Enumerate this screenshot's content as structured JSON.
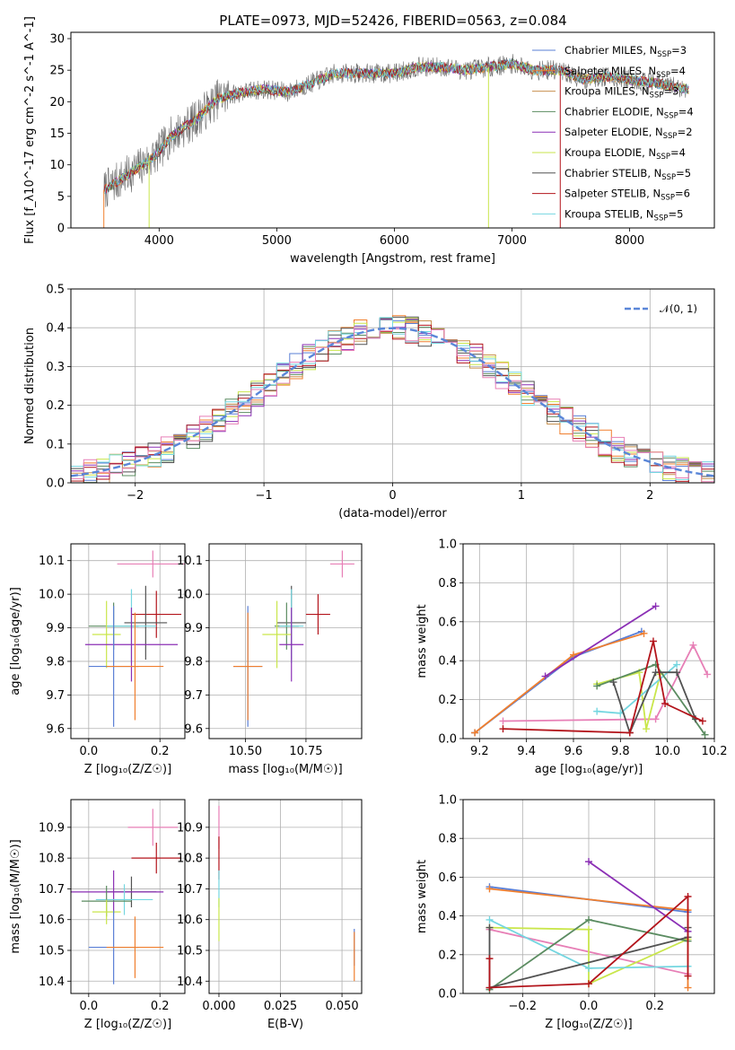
{
  "colors": {
    "chabrier_miles": "#5a7fd6",
    "salpeter_miles": "#f07f2e",
    "kroupa_miles": "#c8914f",
    "chabrier_elodie": "#5b8c61",
    "salpeter_elodie": "#8b2fb5",
    "kroupa_elodie": "#c9e64b",
    "chabrier_stelib": "#525252",
    "salpeter_stelib": "#b3141b",
    "kroupa_stelib": "#74d6e0",
    "pink": "#e77fb6",
    "normal": "#5a86d8"
  },
  "chart_data": [
    {
      "id": "spectrum",
      "type": "line",
      "title": "PLATE=0973, MJD=52426, FIBERID=0563, z=0.084",
      "xlabel": "wavelength [Angstrom, rest frame]",
      "ylabel": "Flux [f_λ10^-17 erg cm^-2 s^-1 A^-1]",
      "xlim": [
        3250,
        8720
      ],
      "ylim": [
        0,
        31
      ],
      "xticks": [
        "4000",
        "5000",
        "6000",
        "7000",
        "8000"
      ],
      "yticks": [
        "0",
        "5",
        "10",
        "15",
        "20",
        "25",
        "30"
      ],
      "legend": "top-right",
      "legend_entries": [
        {
          "label": "Chabrier MILES, N",
          "sub": "SSP",
          "suffix": "=3",
          "color_key": "chabrier_miles"
        },
        {
          "label": "Salpeter MILES, N",
          "sub": "SSP",
          "suffix": "=4",
          "color_key": "salpeter_miles"
        },
        {
          "label": "Kroupa MILES, N",
          "sub": "SSP",
          "suffix": "=3",
          "color_key": "kroupa_miles"
        },
        {
          "label": "Chabrier ELODIE, N",
          "sub": "SSP",
          "suffix": "=4",
          "color_key": "chabrier_elodie"
        },
        {
          "label": "Salpeter ELODIE, N",
          "sub": "SSP",
          "suffix": "=2",
          "color_key": "salpeter_elodie"
        },
        {
          "label": "Kroupa ELODIE, N",
          "sub": "SSP",
          "suffix": "=4",
          "color_key": "kroupa_elodie"
        },
        {
          "label": "Chabrier STELIB, N",
          "sub": "SSP",
          "suffix": "=5",
          "color_key": "chabrier_stelib"
        },
        {
          "label": "Salpeter STELIB, N",
          "sub": "SSP",
          "suffix": "=6",
          "color_key": "salpeter_stelib"
        },
        {
          "label": "Kroupa STELIB, N",
          "sub": "SSP",
          "suffix": "=5",
          "color_key": "kroupa_stelib"
        }
      ],
      "continuum": [
        [
          3530,
          6
        ],
        [
          3700,
          8
        ],
        [
          3900,
          10.5
        ],
        [
          4000,
          12
        ],
        [
          4100,
          14.5
        ],
        [
          4300,
          17
        ],
        [
          4500,
          20.5
        ],
        [
          4700,
          21.5
        ],
        [
          4900,
          22
        ],
        [
          5100,
          21.5
        ],
        [
          5300,
          23
        ],
        [
          5500,
          24.5
        ],
        [
          5800,
          24.5
        ],
        [
          6000,
          24.5
        ],
        [
          6200,
          25.5
        ],
        [
          6400,
          25.5
        ],
        [
          6600,
          25
        ],
        [
          6800,
          25.5
        ],
        [
          7000,
          26
        ],
        [
          7200,
          25
        ],
        [
          7400,
          25
        ],
        [
          7600,
          23.5
        ],
        [
          7800,
          24
        ],
        [
          8000,
          23.5
        ],
        [
          8200,
          23
        ],
        [
          8500,
          22
        ]
      ],
      "dropouts": [
        {
          "x": 3530,
          "bottom": 0,
          "color_key": "salpeter_miles"
        },
        {
          "x": 3915,
          "bottom": 0,
          "color_key": "kroupa_elodie"
        },
        {
          "x": 6800,
          "bottom": 0,
          "color_key": "kroupa_elodie"
        },
        {
          "x": 7410,
          "bottom": 0,
          "color_key": "salpeter_stelib"
        }
      ]
    },
    {
      "id": "residual_hist",
      "type": "line",
      "xlabel": "(data-model)/error",
      "ylabel": "Normed distribution",
      "xlim": [
        -2.5,
        2.5
      ],
      "ylim": [
        0,
        0.5
      ],
      "xticks": [
        "−2",
        "−1",
        "0",
        "1",
        "2"
      ],
      "yticks": [
        "0.0",
        "0.1",
        "0.2",
        "0.3",
        "0.4",
        "0.5"
      ],
      "legend": "top-right",
      "legend_label": "𝒩(0, 1)",
      "bin_width": 0.1,
      "peak_values": [
        0.47,
        0.46,
        0.45,
        0.44,
        0.43,
        0.42
      ]
    },
    {
      "id": "age_vs_Z",
      "type": "scatter",
      "xlabel": "Z [log₁₀(Z/Z☉)]",
      "ylabel": "age  [log₁₀(age/yr)]",
      "xlim": [
        -0.05,
        0.27
      ],
      "ylim": [
        9.57,
        10.15
      ],
      "xticks": [
        "0.0",
        "0.2"
      ],
      "yticks": [
        "9.6",
        "9.7",
        "9.8",
        "9.9",
        "10.0",
        "10.1"
      ],
      "points": [
        {
          "color_key": "pink",
          "x": 0.18,
          "xerr": 0.1,
          "y": 10.09,
          "yerr": 0.04
        },
        {
          "color_key": "salpeter_stelib",
          "x": 0.19,
          "xerr": 0.07,
          "y": 9.94,
          "yerr": 0.07
        },
        {
          "color_key": "chabrier_stelib",
          "x": 0.16,
          "xerr": 0.06,
          "y": 9.915,
          "yerr": 0.11
        },
        {
          "color_key": "chabrier_elodie",
          "x": 0.07,
          "xerr": 0.07,
          "y": 9.905,
          "yerr": 0.07
        },
        {
          "color_key": "kroupa_stelib",
          "x": 0.12,
          "xerr": 0.07,
          "y": 9.905,
          "yerr": 0.11
        },
        {
          "color_key": "kroupa_elodie",
          "x": 0.05,
          "xerr": 0.04,
          "y": 9.88,
          "yerr": 0.1
        },
        {
          "color_key": "salpeter_elodie",
          "x": 0.12,
          "xerr": 0.13,
          "y": 9.85,
          "yerr": 0.11
        },
        {
          "color_key": "chabrier_miles",
          "x": 0.07,
          "xerr": 0.07,
          "y": 9.785,
          "yerr": 0.18
        },
        {
          "color_key": "salpeter_miles",
          "x": 0.13,
          "xerr": 0.08,
          "y": 9.785,
          "yerr": 0.16
        }
      ]
    },
    {
      "id": "age_vs_mass",
      "type": "scatter",
      "xlabel": "mass [log₁₀(M/M☉)]",
      "ylabel": "",
      "xlim": [
        10.35,
        10.98
      ],
      "ylim": [
        9.57,
        10.15
      ],
      "xticks": [
        "10.50",
        "10.75"
      ],
      "yticks": [
        "9.6",
        "9.7",
        "9.8",
        "9.9",
        "10.0",
        "10.1"
      ],
      "points": [
        {
          "color_key": "pink",
          "x": 10.9,
          "xerr": 0.05,
          "y": 10.09,
          "yerr": 0.04
        },
        {
          "color_key": "salpeter_stelib",
          "x": 10.8,
          "xerr": 0.05,
          "y": 9.94,
          "yerr": 0.06
        },
        {
          "color_key": "chabrier_stelib",
          "x": 10.69,
          "xerr": 0.06,
          "y": 9.915,
          "yerr": 0.11
        },
        {
          "color_key": "chabrier_elodie",
          "x": 10.67,
          "xerr": 0.05,
          "y": 9.905,
          "yerr": 0.07
        },
        {
          "color_key": "kroupa_stelib",
          "x": 10.69,
          "xerr": 0.05,
          "y": 9.905,
          "yerr": 0.11
        },
        {
          "color_key": "kroupa_elodie",
          "x": 10.63,
          "xerr": 0.06,
          "y": 9.88,
          "yerr": 0.1
        },
        {
          "color_key": "salpeter_elodie",
          "x": 10.69,
          "xerr": 0.05,
          "y": 9.85,
          "yerr": 0.11
        },
        {
          "color_key": "chabrier_miles",
          "x": 10.51,
          "xerr": 0.06,
          "y": 9.785,
          "yerr": 0.18
        },
        {
          "color_key": "salpeter_miles",
          "x": 10.51,
          "xerr": 0.06,
          "y": 9.785,
          "yerr": 0.16
        }
      ]
    },
    {
      "id": "weight_vs_age",
      "type": "line",
      "xlabel": "age  [log₁₀(age/yr)]",
      "ylabel": "mass weight",
      "xlim": [
        9.13,
        10.2
      ],
      "ylim": [
        0,
        1
      ],
      "xticks": [
        "9.2",
        "9.4",
        "9.6",
        "9.8",
        "10.0",
        "10.2"
      ],
      "yticks": [
        "0.0",
        "0.2",
        "0.4",
        "0.6",
        "0.8",
        "1.0"
      ],
      "series": [
        {
          "color_key": "chabrier_miles",
          "x": [
            9.18,
            9.6,
            9.89
          ],
          "y": [
            0.03,
            0.42,
            0.55
          ]
        },
        {
          "color_key": "salpeter_miles",
          "x": [
            9.18,
            9.6,
            9.9
          ],
          "y": [
            0.03,
            0.43,
            0.54
          ]
        },
        {
          "color_key": "salpeter_elodie",
          "x": [
            9.48,
            9.95
          ],
          "y": [
            0.32,
            0.68
          ]
        },
        {
          "color_key": "pink",
          "x": [
            9.3,
            9.95,
            10.11,
            10.17
          ],
          "y": [
            0.09,
            0.1,
            0.48,
            0.33
          ]
        },
        {
          "color_key": "kroupa_elodie",
          "x": [
            9.7,
            9.88,
            9.91,
            9.97
          ],
          "y": [
            0.28,
            0.34,
            0.05,
            0.33
          ]
        },
        {
          "color_key": "kroupa_stelib",
          "x": [
            9.7,
            9.8,
            10.04
          ],
          "y": [
            0.14,
            0.13,
            0.38
          ]
        },
        {
          "color_key": "chabrier_elodie",
          "x": [
            9.7,
            9.95,
            10.16
          ],
          "y": [
            0.27,
            0.38,
            0.02
          ]
        },
        {
          "color_key": "chabrier_stelib",
          "x": [
            9.77,
            9.84,
            9.95,
            10.04,
            10.12
          ],
          "y": [
            0.29,
            0.03,
            0.34,
            0.34,
            0.1
          ]
        },
        {
          "color_key": "salpeter_stelib",
          "x": [
            9.3,
            9.84,
            9.94,
            9.99,
            10.15
          ],
          "y": [
            0.05,
            0.03,
            0.5,
            0.18,
            0.09
          ]
        }
      ]
    },
    {
      "id": "mass_vs_Z",
      "type": "scatter",
      "xlabel": "Z [log₁₀(Z/Z☉)]",
      "ylabel": "mass [log₁₀(M/M☉)]",
      "xlim": [
        -0.05,
        0.27
      ],
      "ylim": [
        10.36,
        10.99
      ],
      "xticks": [
        "0.0",
        "0.2"
      ],
      "yticks": [
        "10.4",
        "10.5",
        "10.6",
        "10.7",
        "10.8",
        "10.9"
      ],
      "points": [
        {
          "color_key": "pink",
          "x": 0.18,
          "xerr": 0.07,
          "y": 10.9,
          "yerr": 0.06
        },
        {
          "color_key": "salpeter_stelib",
          "x": 0.19,
          "xerr": 0.07,
          "y": 10.8,
          "yerr": 0.05
        },
        {
          "color_key": "chabrier_stelib",
          "x": 0.12,
          "xerr": 0.07,
          "y": 10.69,
          "yerr": 0.05
        },
        {
          "color_key": "salpeter_elodie",
          "x": 0.07,
          "xerr": 0.14,
          "y": 10.69,
          "yerr": 0.07
        },
        {
          "color_key": "kroupa_stelib",
          "x": 0.1,
          "xerr": 0.08,
          "y": 10.665,
          "yerr": 0.05
        },
        {
          "color_key": "chabrier_elodie",
          "x": 0.05,
          "xerr": 0.07,
          "y": 10.66,
          "yerr": 0.05
        },
        {
          "color_key": "kroupa_elodie",
          "x": 0.05,
          "xerr": 0.04,
          "y": 10.625,
          "yerr": 0.04
        },
        {
          "color_key": "chabrier_miles",
          "x": 0.07,
          "xerr": 0.07,
          "y": 10.51,
          "yerr": 0.12
        },
        {
          "color_key": "salpeter_miles",
          "x": 0.13,
          "xerr": 0.08,
          "y": 10.51,
          "yerr": 0.1
        }
      ]
    },
    {
      "id": "mass_vs_ebv",
      "type": "scatter",
      "xlabel": "E(B-V)",
      "ylabel": "",
      "xlim": [
        -0.004,
        0.058
      ],
      "ylim": [
        10.36,
        10.99
      ],
      "xticks": [
        "0.000",
        "0.025",
        "0.050"
      ],
      "yticks": [
        "10.4",
        "10.5",
        "10.6",
        "10.7",
        "10.8",
        "10.9"
      ],
      "points": [
        {
          "color_key": "pink",
          "x": 0.0,
          "xerr": 0.0,
          "y": 10.9,
          "yerr": 0.07
        },
        {
          "color_key": "salpeter_stelib",
          "x": 0.0,
          "xerr": 0.0,
          "y": 10.8,
          "yerr": 0.07
        },
        {
          "color_key": "kroupa_stelib",
          "x": 0.0,
          "xerr": 0.0,
          "y": 10.7,
          "yerr": 0.06
        },
        {
          "color_key": "kroupa_elodie",
          "x": 0.0,
          "xerr": 0.0,
          "y": 10.6,
          "yerr": 0.07
        },
        {
          "color_key": "chabrier_miles",
          "x": 0.055,
          "xerr": 0.0,
          "y": 10.51,
          "yerr": 0.06
        },
        {
          "color_key": "salpeter_miles",
          "x": 0.055,
          "xerr": 0.0,
          "y": 10.48,
          "yerr": 0.08
        }
      ]
    },
    {
      "id": "weight_vs_Z",
      "type": "line",
      "xlabel": "Z [log₁₀(Z/Z☉)]",
      "ylabel": "mass weight",
      "xlim": [
        -0.38,
        0.38
      ],
      "ylim": [
        0,
        1
      ],
      "xticks": [
        "−0.2",
        "0.0",
        "0.2"
      ],
      "yticks": [
        "0.0",
        "0.2",
        "0.4",
        "0.6",
        "0.8",
        "1.0"
      ],
      "series": [
        {
          "color_key": "chabrier_miles",
          "x": [
            -0.3,
            0.3
          ],
          "y": [
            0.55,
            0.42
          ]
        },
        {
          "color_key": "salpeter_miles",
          "x": [
            -0.3,
            0.3,
            0.3
          ],
          "y": [
            0.54,
            0.43,
            0.03
          ]
        },
        {
          "color_key": "salpeter_elodie",
          "x": [
            0.0,
            0.3
          ],
          "y": [
            0.68,
            0.32
          ]
        },
        {
          "color_key": "pink",
          "x": [
            -0.3,
            0.3
          ],
          "y": [
            0.33,
            0.1
          ]
        },
        {
          "color_key": "kroupa_elodie",
          "x": [
            -0.3,
            0.0,
            0.0,
            0.3
          ],
          "y": [
            0.34,
            0.33,
            0.05,
            0.28
          ]
        },
        {
          "color_key": "kroupa_stelib",
          "x": [
            -0.3,
            0.0,
            0.3
          ],
          "y": [
            0.38,
            0.13,
            0.14
          ]
        },
        {
          "color_key": "chabrier_elodie",
          "x": [
            -0.3,
            0.0,
            0.3
          ],
          "y": [
            0.02,
            0.38,
            0.27
          ]
        },
        {
          "color_key": "chabrier_stelib",
          "x": [
            -0.3,
            -0.3,
            0.3,
            0.3
          ],
          "y": [
            0.34,
            0.03,
            0.29,
            0.34
          ]
        },
        {
          "color_key": "salpeter_stelib",
          "x": [
            -0.3,
            -0.3,
            0.0,
            0.3,
            0.3
          ],
          "y": [
            0.18,
            0.03,
            0.05,
            0.5,
            0.09
          ]
        }
      ]
    }
  ]
}
